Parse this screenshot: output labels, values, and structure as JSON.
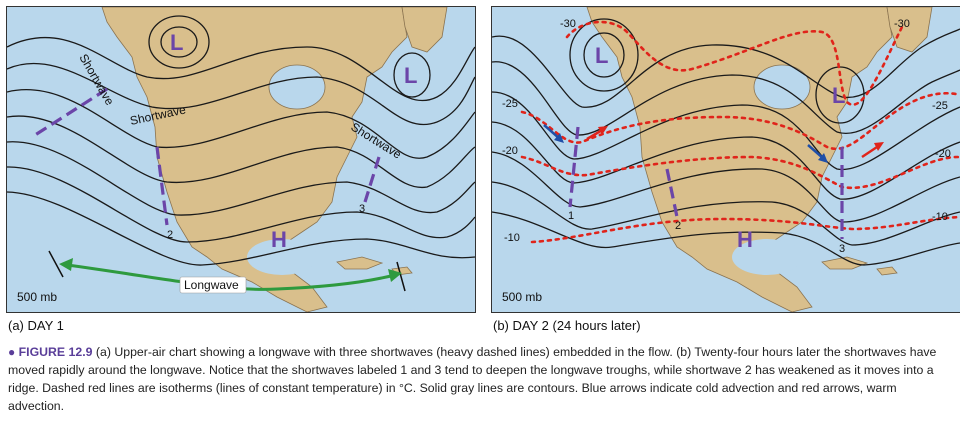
{
  "panel_a": {
    "level_label": "500 mb",
    "caption": "(a) DAY 1",
    "symbols": {
      "low": "L",
      "high": "H"
    },
    "shortwave_label": "Shortwave",
    "longwave_label": "Longwave",
    "trough_numbers": [
      "2",
      "3"
    ]
  },
  "panel_b": {
    "level_label": "500 mb",
    "caption": "(b) DAY 2 (24 hours later)",
    "symbols": {
      "low": "L",
      "high": "H"
    },
    "trough_numbers": [
      "1",
      "2",
      "3"
    ],
    "isotherm_labels": [
      "-30",
      "-30",
      "-25",
      "-25",
      "-20",
      "-20",
      "-10",
      "-10"
    ]
  },
  "figure_caption": {
    "bullet": "●",
    "label": "FIGURE 12.9",
    "text": "(a) Upper-air chart showing a longwave with three shortwaves (heavy dashed lines) embedded in the flow. (b) Twenty-four hours later the shortwaves have moved rapidly around the longwave. Notice that the shortwaves labeled 1 and 3 tend to deepen the longwave troughs, while shortwave 2 has weakened as it moves into a ridge. Dashed red lines are isotherms (lines of constant temperature) in °C. Solid gray lines are contours. Blue arrows indicate cold advection and red arrows, warm advection."
  },
  "colors": {
    "ocean": "#b9d7ec",
    "land": "#d9bf8c",
    "contour": "#1a1a1a",
    "isotherm": "#e0241b",
    "shortwave": "#6b45a8",
    "longwave_arrow": "#2e9a3e",
    "cold_arrow": "#1f4fa8",
    "warm_arrow": "#e0241b"
  }
}
